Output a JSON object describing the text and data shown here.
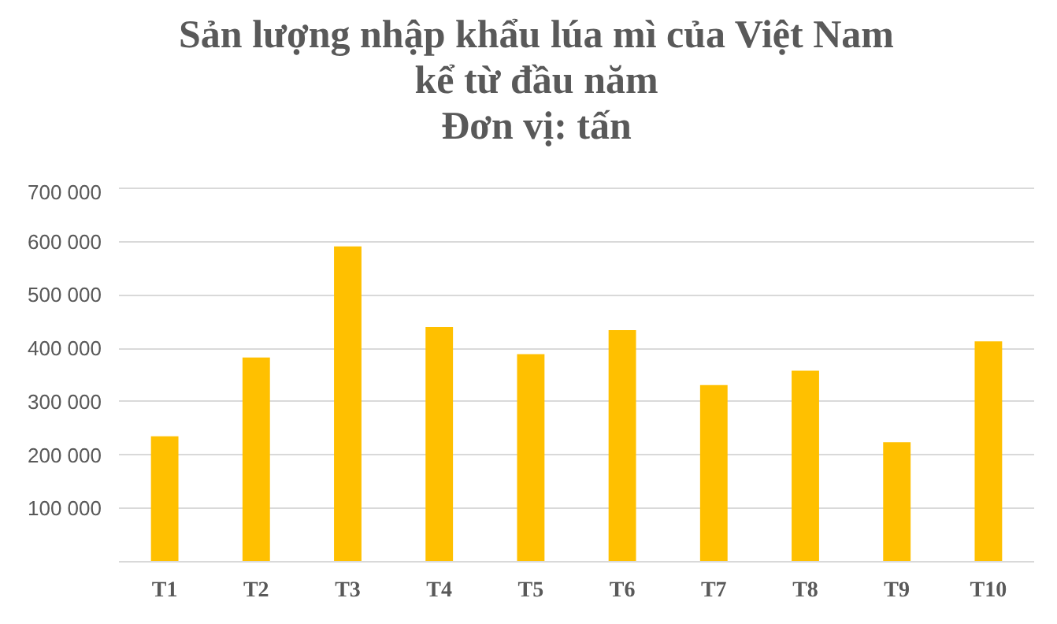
{
  "chart_data": {
    "type": "bar",
    "title": "Sản lượng nhập khẩu lúa mì của Việt Nam kể từ đầu năm",
    "subtitle": "Đơn vị: tấn",
    "categories": [
      "T1",
      "T2",
      "T3",
      "T4",
      "T5",
      "T6",
      "T7",
      "T8",
      "T9",
      "T10"
    ],
    "values": [
      235000,
      383000,
      591000,
      440000,
      389000,
      434000,
      331000,
      358000,
      224000,
      413000
    ],
    "color": "#ffc000",
    "ylim": [
      0,
      700000
    ],
    "yticks": [
      {
        "value": 0,
        "label": null
      },
      {
        "value": 100000,
        "label": "100 000"
      },
      {
        "value": 200000,
        "label": "200 000"
      },
      {
        "value": 300000,
        "label": "300 000"
      },
      {
        "value": 400000,
        "label": "400 000"
      },
      {
        "value": 500000,
        "label": "500 000"
      },
      {
        "value": 600000,
        "label": "600 000"
      },
      {
        "value": 700000,
        "label": "700 000"
      }
    ],
    "grid": "y"
  }
}
